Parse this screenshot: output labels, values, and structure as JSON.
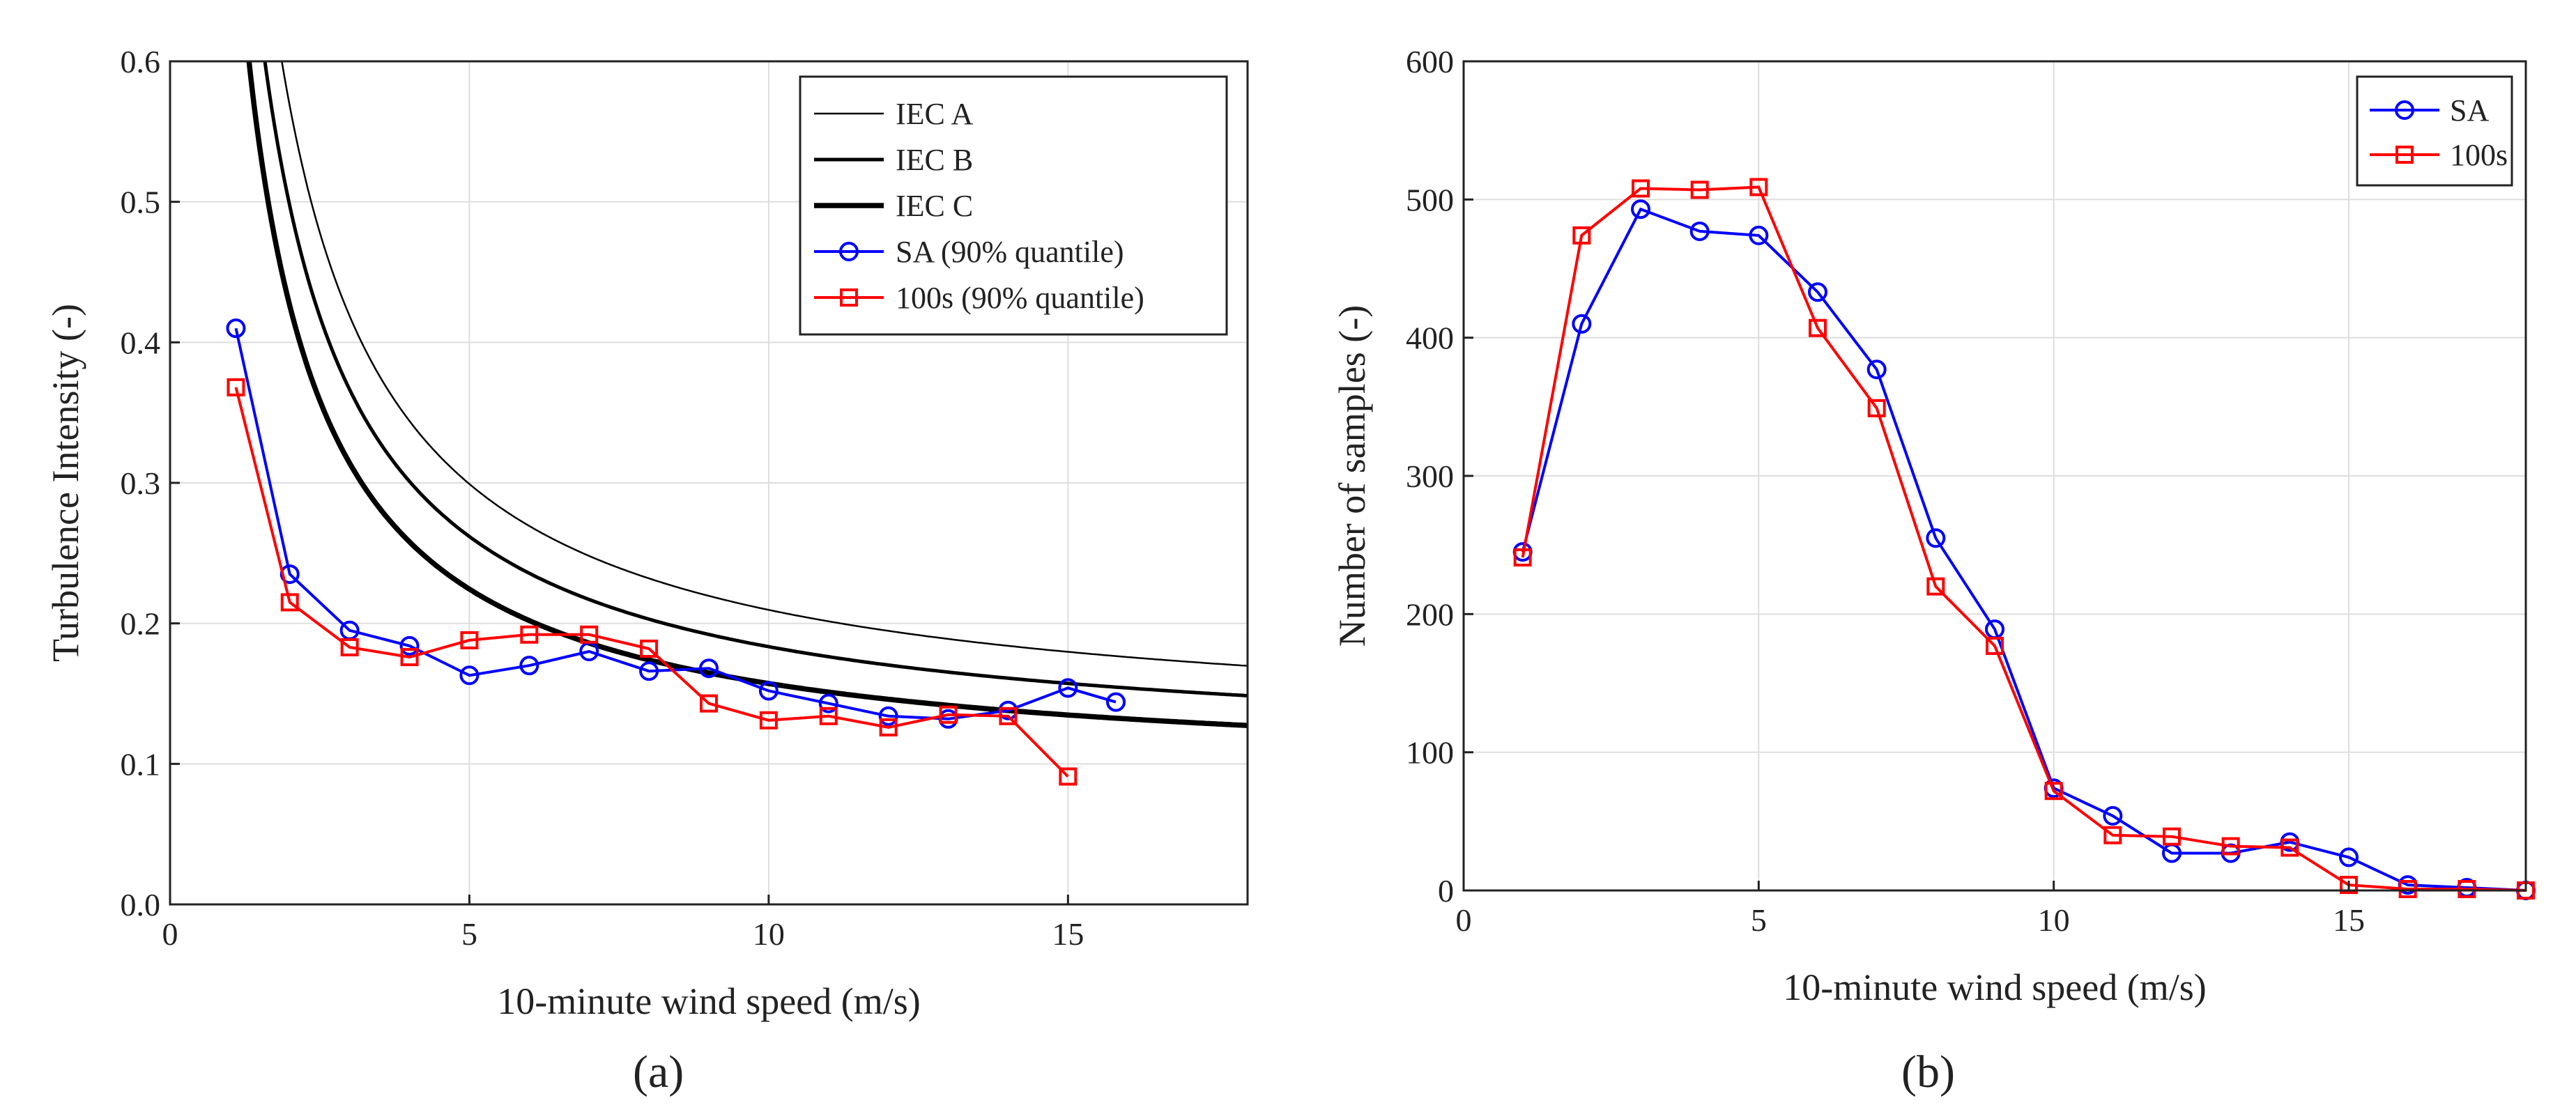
{
  "chart_data": [
    {
      "type": "line",
      "panel_label": "(a)",
      "xlabel": "10-minute wind speed (m/s)",
      "ylabel": "Turbulence Intensity (-)",
      "xlim": [
        0,
        18
      ],
      "ylim": [
        0,
        0.6
      ],
      "xticks": [
        0,
        5,
        10,
        15
      ],
      "xtick_labels": [
        "0",
        "5",
        "10",
        "15"
      ],
      "yticks": [
        0,
        0.1,
        0.2,
        0.3,
        0.4,
        0.5,
        0.6
      ],
      "ytick_labels": [
        "0.0",
        "0.1",
        "0.2",
        "0.3",
        "0.4",
        "0.5",
        "0.6"
      ],
      "grid": true,
      "legend_position": "top-right",
      "curves": [
        {
          "name": "IEC A",
          "label": "IEC A",
          "color": "#000000",
          "iref": 0.16,
          "weight": "thin"
        },
        {
          "name": "IEC B",
          "label": "IEC B",
          "color": "#000000",
          "iref": 0.14,
          "weight": "medium"
        },
        {
          "name": "IEC C",
          "label": "IEC C",
          "color": "#000000",
          "iref": 0.12,
          "weight": "thick"
        }
      ],
      "series": [
        {
          "name": "SA (90% quantile)",
          "label": "SA (90% quantile)",
          "color": "#0000ff",
          "marker": "circle",
          "x": [
            1.1,
            2,
            3,
            4,
            5,
            6,
            7,
            8,
            9,
            10,
            11,
            12,
            13,
            14,
            15,
            15.8
          ],
          "y": [
            0.41,
            0.235,
            0.195,
            0.184,
            0.163,
            0.17,
            0.18,
            0.166,
            0.168,
            0.152,
            0.143,
            0.134,
            0.132,
            0.138,
            0.154,
            0.144
          ]
        },
        {
          "name": "100s (90% quantile)",
          "label": "100s (90% quantile)",
          "color": "#ff0000",
          "marker": "square",
          "x": [
            1.1,
            2,
            3,
            4,
            5,
            6,
            7,
            8,
            9,
            10,
            11,
            12,
            13,
            14,
            15
          ],
          "y": [
            0.368,
            0.215,
            0.183,
            0.176,
            0.188,
            0.192,
            0.192,
            0.182,
            0.143,
            0.131,
            0.134,
            0.126,
            0.135,
            0.134,
            0.091
          ]
        }
      ]
    },
    {
      "type": "line",
      "panel_label": "(b)",
      "xlabel": "10-minute wind speed (m/s)",
      "ylabel": "Number of samples (-)",
      "xlim": [
        0,
        18
      ],
      "ylim": [
        0,
        600
      ],
      "xticks": [
        0,
        5,
        10,
        15
      ],
      "xtick_labels": [
        "0",
        "5",
        "10",
        "15"
      ],
      "yticks": [
        0,
        100,
        200,
        300,
        400,
        500,
        600
      ],
      "ytick_labels": [
        "0",
        "100",
        "200",
        "300",
        "400",
        "500",
        "600"
      ],
      "grid": true,
      "legend_position": "top-right",
      "curves": [],
      "series": [
        {
          "name": "SA",
          "label": "SA",
          "color": "#0000ff",
          "marker": "circle",
          "x": [
            1,
            2,
            3,
            4,
            5,
            6,
            7,
            8,
            9,
            10,
            11,
            12,
            13,
            14,
            15,
            16,
            17,
            18
          ],
          "y": [
            245,
            410,
            493,
            477,
            474,
            433,
            377,
            255,
            189,
            74,
            54,
            27,
            27,
            35,
            24,
            4,
            2,
            0
          ]
        },
        {
          "name": "100s",
          "label": "100s",
          "color": "#ff0000",
          "marker": "square",
          "x": [
            1,
            2,
            3,
            4,
            5,
            6,
            7,
            8,
            9,
            10,
            11,
            12,
            13,
            14,
            15,
            16,
            17,
            18
          ],
          "y": [
            241,
            474,
            508,
            507,
            509,
            407,
            349,
            220,
            177,
            72,
            40,
            39,
            32,
            31,
            4,
            1,
            1,
            0
          ]
        }
      ]
    }
  ]
}
